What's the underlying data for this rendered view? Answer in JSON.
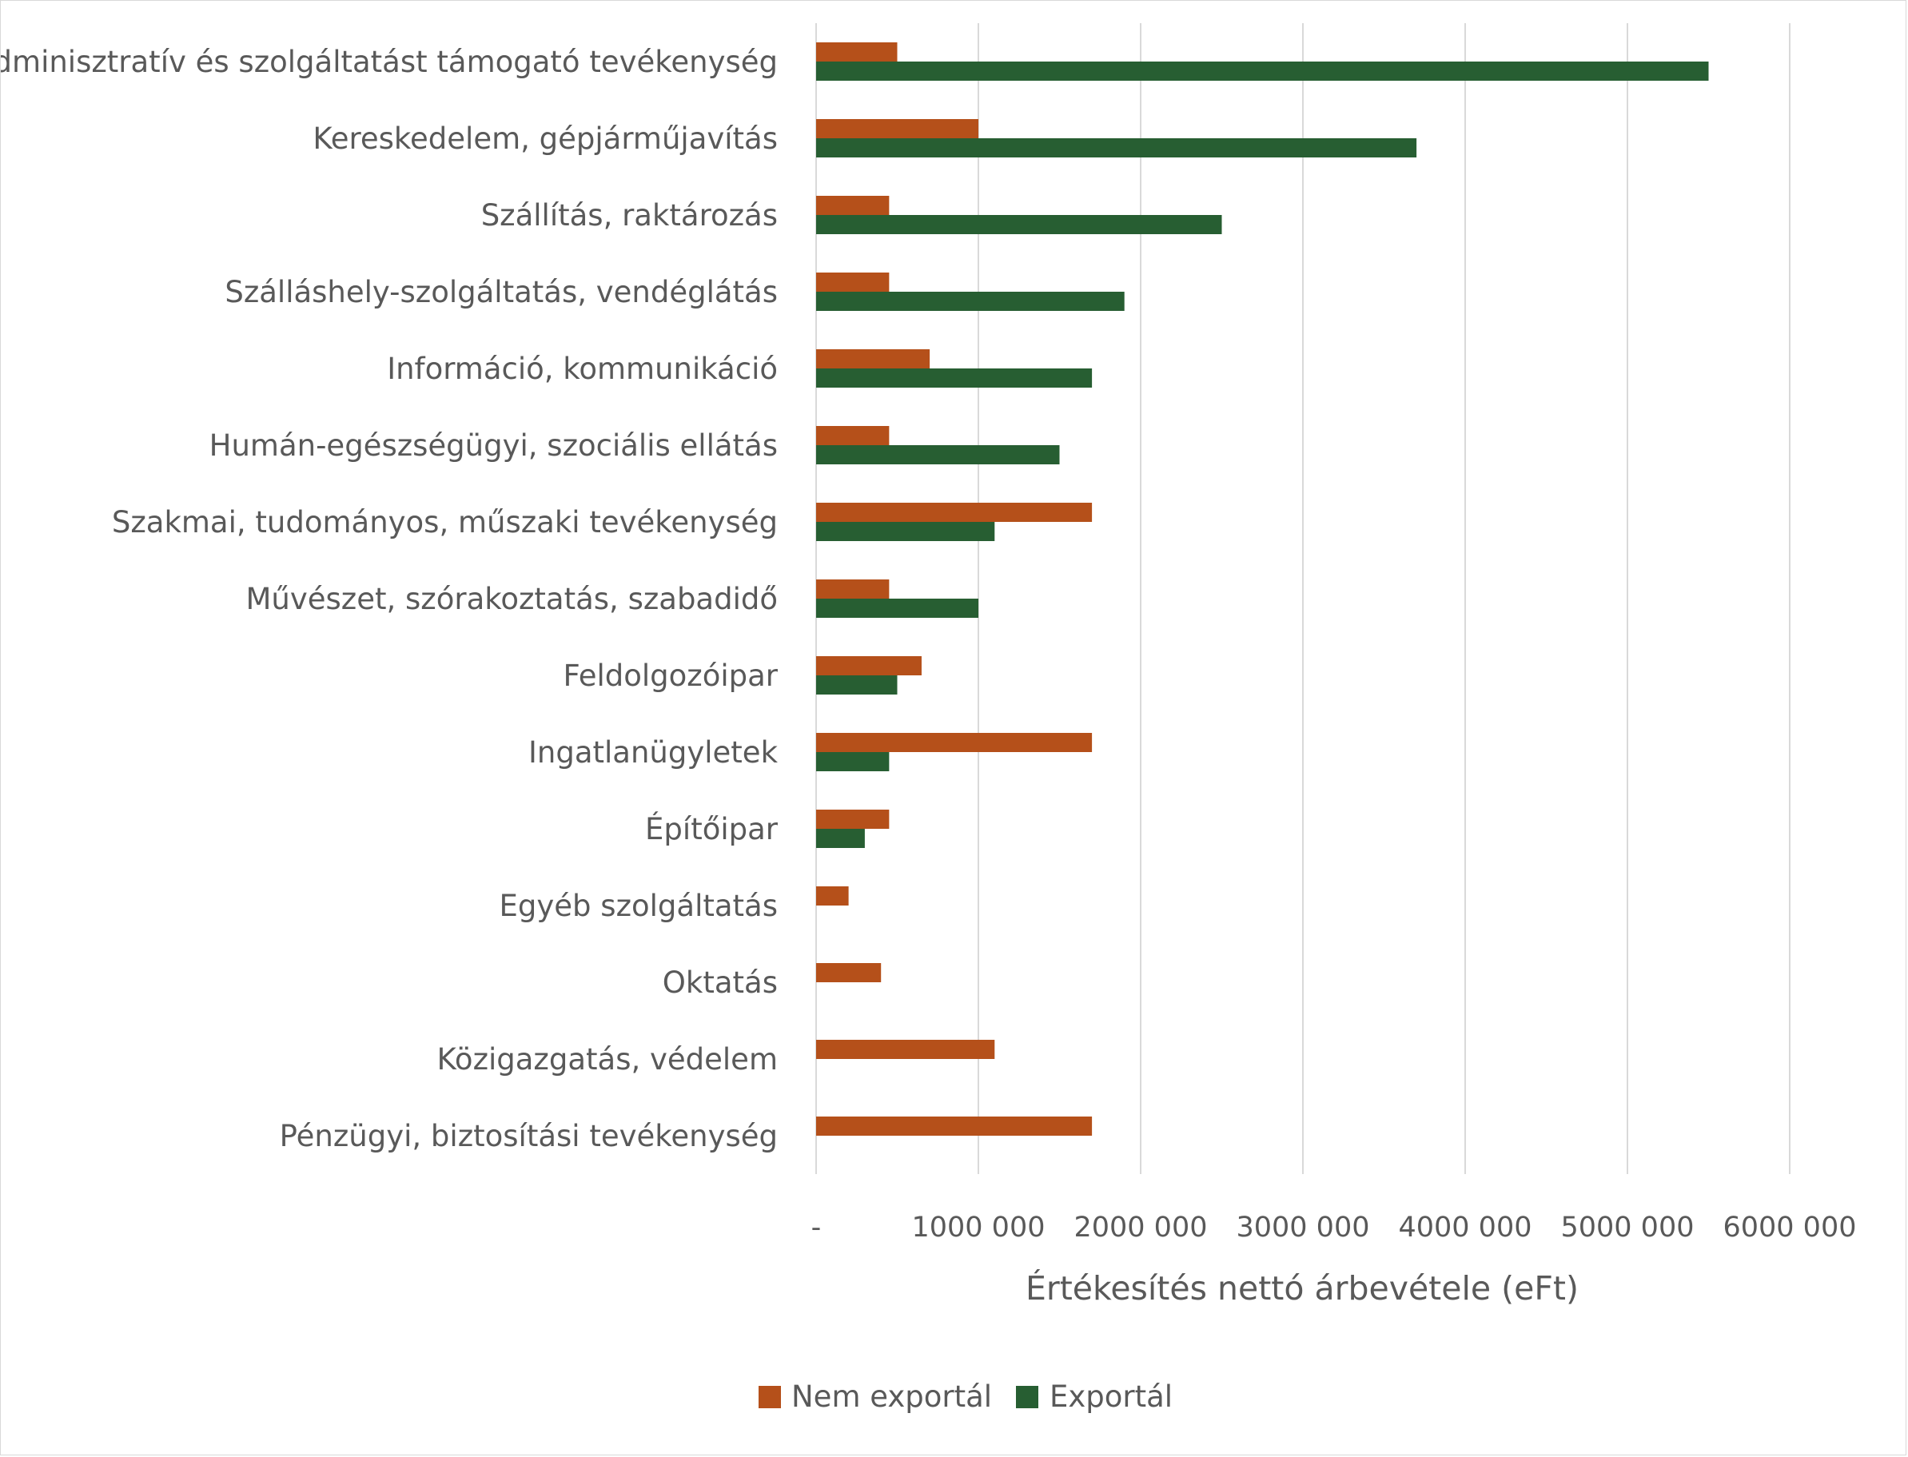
{
  "chart_data": {
    "type": "bar",
    "orientation": "horizontal",
    "categories": [
      "Adminisztratív és szolgáltatást támogató tevékenység",
      "Kereskedelem, gépjárműjavítás",
      "Szállítás, raktározás",
      "Szálláshely-szolgáltatás, vendéglátás",
      "Információ, kommunikáció",
      "Humán-egészségügyi, szociális ellátás",
      "Szakmai, tudományos, műszaki tevékenység",
      "Művészet, szórakoztatás, szabadidő",
      "Feldolgozóipar",
      "Ingatlanügyletek",
      "Építőipar",
      "Egyéb szolgáltatás",
      "Oktatás",
      "Közigazgatás, védelem",
      "Pénzügyi, biztosítási tevékenység"
    ],
    "series": [
      {
        "name": "Nem exportál",
        "color": "#b5501a",
        "values": [
          500000,
          1000000,
          450000,
          450000,
          700000,
          450000,
          1700000,
          450000,
          650000,
          1700000,
          450000,
          200000,
          400000,
          1100000,
          1700000
        ]
      },
      {
        "name": "Exportál",
        "color": "#275e32",
        "values": [
          5500000,
          3700000,
          2500000,
          1900000,
          1700000,
          1500000,
          1100000,
          1000000,
          500000,
          450000,
          300000,
          0,
          0,
          0,
          0
        ]
      }
    ],
    "xlabel": "Értékesítés nettó árbevétele (eFt)",
    "ylabel": "",
    "title": "",
    "xlim": [
      0,
      6000000
    ],
    "ticks": [
      0,
      1000000,
      2000000,
      3000000,
      4000000,
      5000000,
      6000000
    ],
    "tick_labels": [
      "-",
      "1000 000",
      "2000 000",
      "3000 000",
      "4000 000",
      "5000 000",
      "6000 000"
    ],
    "grid": "vertical",
    "legend_position": "bottom"
  }
}
